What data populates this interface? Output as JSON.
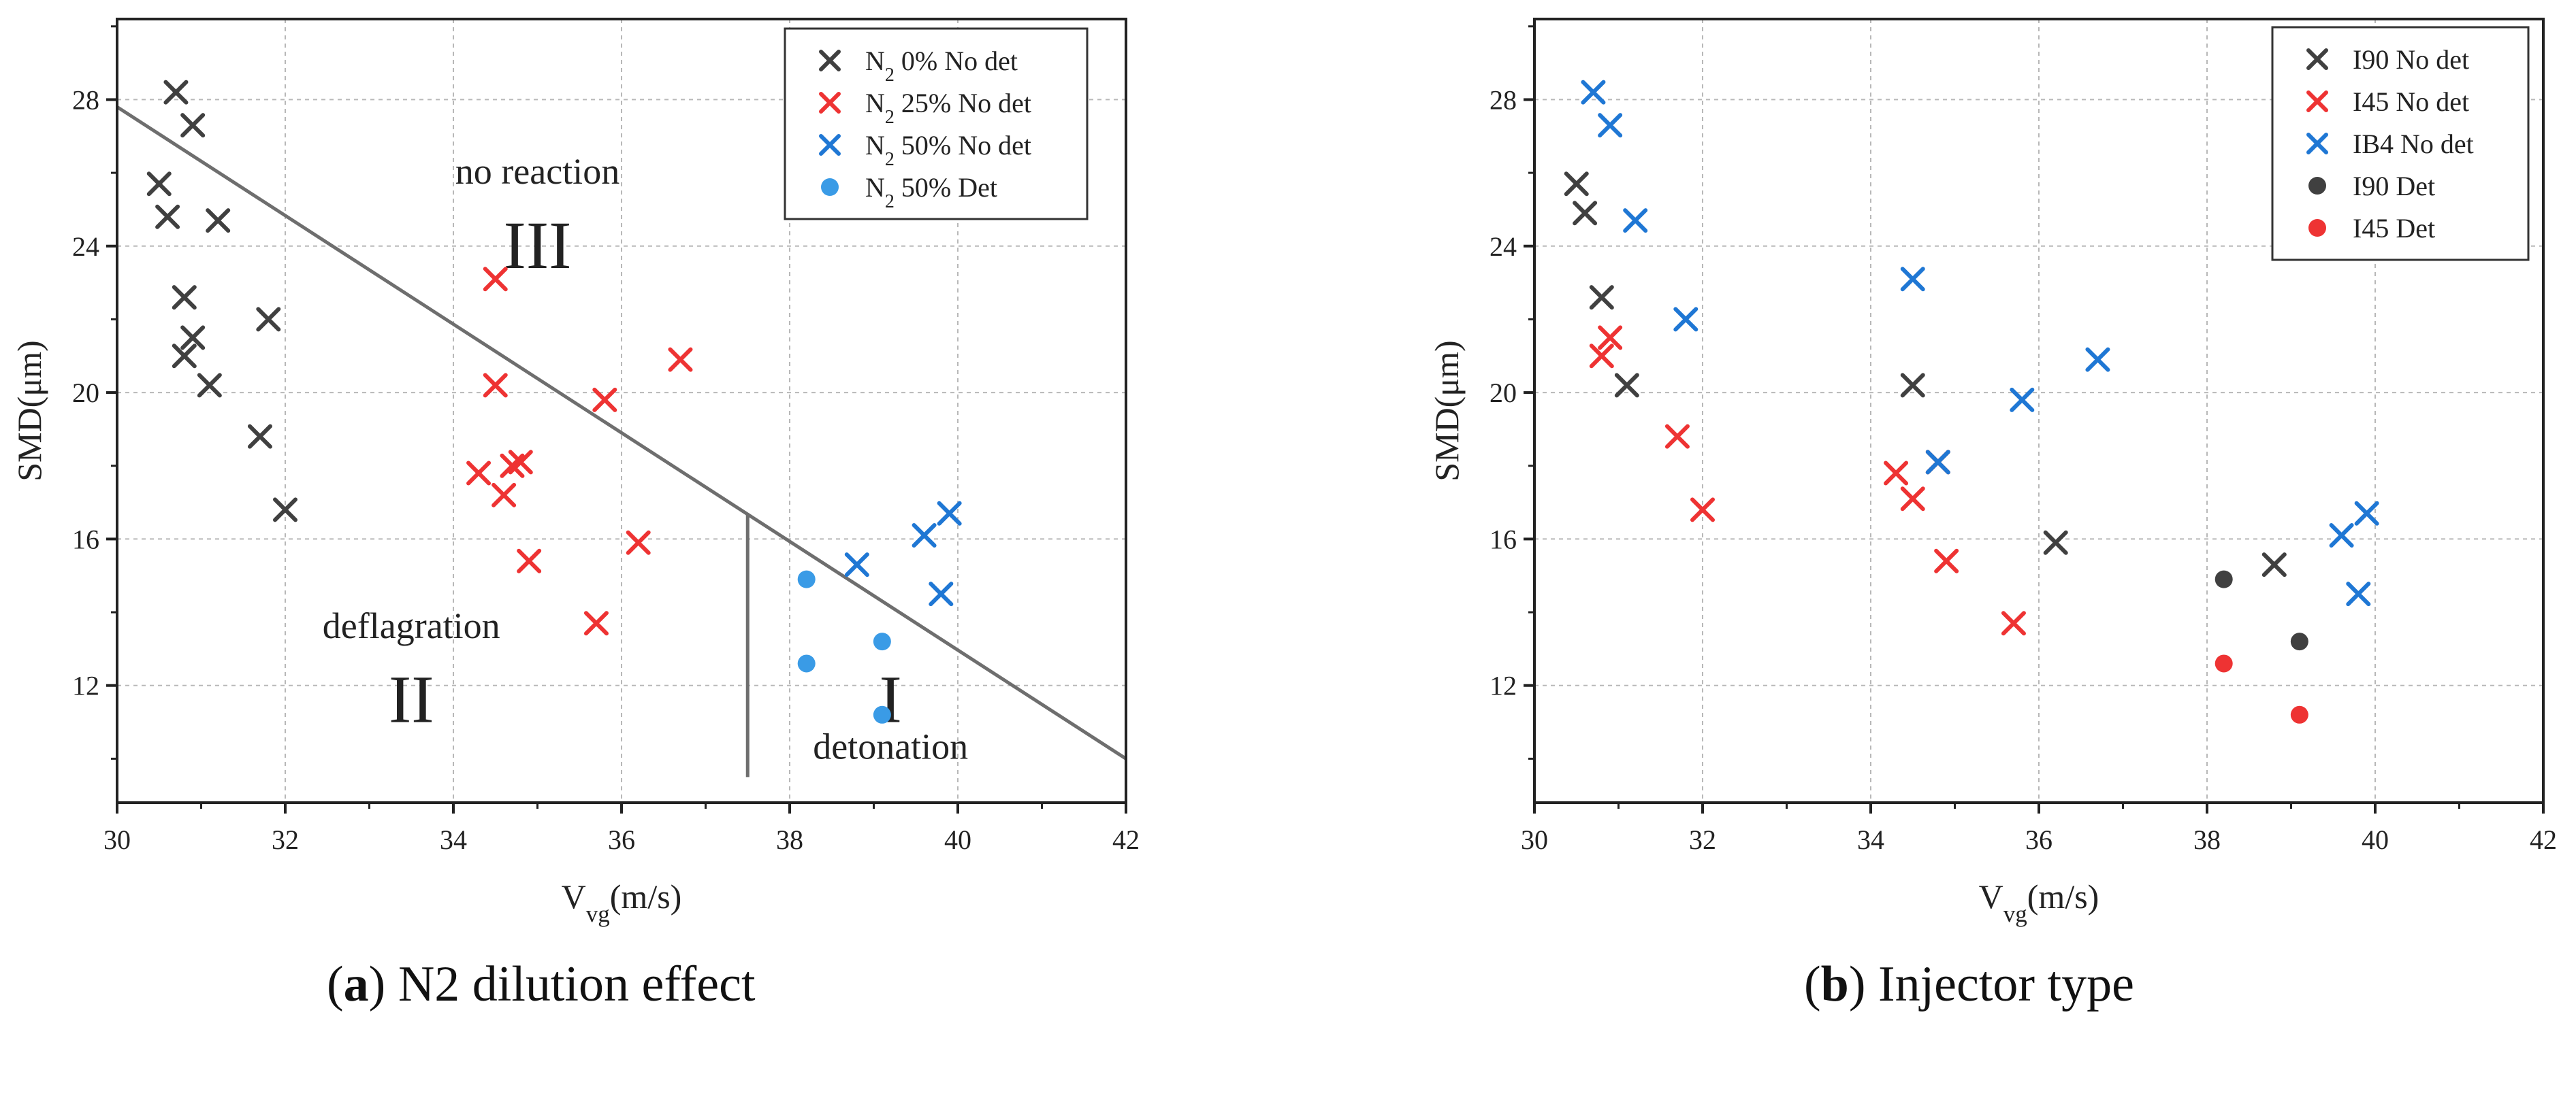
{
  "charts": [
    {
      "id": "a",
      "caption": {
        "letter": "a",
        "text": "N2 dilution effect",
        "prefix": "(",
        "suffix": ")"
      },
      "ylabel": "SMD(μm)",
      "xlabel_main": "V",
      "xlabel_sub": "vg",
      "xlabel_units": "(m/s)",
      "xlim": [
        30,
        42
      ],
      "ylim": [
        8.8,
        30.2
      ],
      "xticks": [
        30,
        32,
        34,
        36,
        38,
        40,
        42
      ],
      "yticks": [
        12,
        16,
        20,
        24,
        28
      ],
      "legend": {
        "position": "top-right",
        "entries": [
          {
            "prefix": "N",
            "sub": "2",
            "rest": " 0% No det",
            "marker": "x",
            "color": "#404040"
          },
          {
            "prefix": "N",
            "sub": "2",
            "rest": " 25% No det",
            "marker": "x",
            "color": "#ee3333"
          },
          {
            "prefix": "N",
            "sub": "2",
            "rest": " 50% No det",
            "marker": "x",
            "color": "#1f77d4"
          },
          {
            "prefix": "N",
            "sub": "2",
            "rest": " 50% Det",
            "marker": "dot",
            "color": "#3a9be6"
          }
        ]
      },
      "series": [
        {
          "name": "N2 0% No det",
          "marker": "x",
          "color": "#404040",
          "points": [
            [
              30.7,
              28.2
            ],
            [
              30.9,
              27.3
            ],
            [
              30.5,
              25.7
            ],
            [
              30.6,
              24.8
            ],
            [
              31.2,
              24.7
            ],
            [
              30.8,
              22.6
            ],
            [
              31.8,
              22.0
            ],
            [
              30.9,
              21.5
            ],
            [
              30.8,
              21.0
            ],
            [
              31.1,
              20.2
            ],
            [
              31.7,
              18.8
            ],
            [
              32.0,
              16.8
            ]
          ]
        },
        {
          "name": "N2 25% No det",
          "marker": "x",
          "color": "#ee3333",
          "points": [
            [
              34.5,
              23.1
            ],
            [
              36.7,
              20.9
            ],
            [
              34.5,
              20.2
            ],
            [
              35.8,
              19.8
            ],
            [
              34.8,
              18.1
            ],
            [
              34.7,
              18.0
            ],
            [
              34.3,
              17.8
            ],
            [
              34.6,
              17.2
            ],
            [
              36.2,
              15.9
            ],
            [
              34.9,
              15.4
            ],
            [
              35.7,
              13.7
            ]
          ]
        },
        {
          "name": "N2 50% No det",
          "marker": "x",
          "color": "#1f77d4",
          "points": [
            [
              39.9,
              16.7
            ],
            [
              39.6,
              16.1
            ],
            [
              38.8,
              15.3
            ],
            [
              39.8,
              14.5
            ]
          ]
        },
        {
          "name": "N2 50% Det",
          "marker": "dot",
          "color": "#3a9be6",
          "points": [
            [
              38.2,
              14.9
            ],
            [
              39.1,
              13.2
            ],
            [
              38.2,
              12.6
            ],
            [
              39.1,
              11.2
            ]
          ]
        }
      ],
      "boundary_lines": [
        {
          "from": [
            30.0,
            27.8
          ],
          "to": [
            42.0,
            10.0
          ]
        },
        {
          "from": [
            37.5,
            16.7
          ],
          "to": [
            37.5,
            9.5
          ]
        }
      ],
      "annotations": [
        {
          "text": "no reaction",
          "x": 35.0,
          "y": 25.7,
          "size": "small"
        },
        {
          "text": "III",
          "x": 35.0,
          "y": 23.4,
          "size": "large"
        },
        {
          "text": "deflagration",
          "x": 33.5,
          "y": 13.3,
          "size": "small"
        },
        {
          "text": "II",
          "x": 33.5,
          "y": 11.0,
          "size": "large"
        },
        {
          "text": "I",
          "x": 39.2,
          "y": 11.0,
          "size": "large"
        },
        {
          "text": "detonation",
          "x": 39.2,
          "y": 10.0,
          "size": "small"
        }
      ]
    },
    {
      "id": "b",
      "caption": {
        "letter": "b",
        "text": "Injector type",
        "prefix": "(",
        "suffix": ")"
      },
      "ylabel": "SMD(μm)",
      "xlabel_main": "V",
      "xlabel_sub": "vg",
      "xlabel_units": "(m/s)",
      "xlim": [
        30,
        42
      ],
      "ylim": [
        8.8,
        30.2
      ],
      "xticks": [
        30,
        32,
        34,
        36,
        38,
        40,
        42
      ],
      "yticks": [
        12,
        16,
        20,
        24,
        28
      ],
      "legend": {
        "position": "top-right",
        "entries": [
          {
            "prefix": "I90 No det",
            "sub": "",
            "rest": "",
            "marker": "x",
            "color": "#404040"
          },
          {
            "prefix": "I45 No det",
            "sub": "",
            "rest": "",
            "marker": "x",
            "color": "#ee3333"
          },
          {
            "prefix": "IB4 No det",
            "sub": "",
            "rest": "",
            "marker": "x",
            "color": "#1f77d4"
          },
          {
            "prefix": "I90 Det",
            "sub": "",
            "rest": "",
            "marker": "dot",
            "color": "#404040"
          },
          {
            "prefix": "I45 Det",
            "sub": "",
            "rest": "",
            "marker": "dot",
            "color": "#ee3333"
          }
        ]
      },
      "series": [
        {
          "name": "I90 No det",
          "marker": "x",
          "color": "#404040",
          "points": [
            [
              30.5,
              25.7
            ],
            [
              30.6,
              24.9
            ],
            [
              30.8,
              22.6
            ],
            [
              31.1,
              20.2
            ],
            [
              34.5,
              20.2
            ],
            [
              34.8,
              18.1
            ],
            [
              36.2,
              15.9
            ],
            [
              38.8,
              15.3
            ]
          ]
        },
        {
          "name": "I45 No det",
          "marker": "x",
          "color": "#ee3333",
          "points": [
            [
              30.9,
              21.5
            ],
            [
              30.8,
              21.0
            ],
            [
              31.7,
              18.8
            ],
            [
              32.0,
              16.8
            ],
            [
              34.3,
              17.8
            ],
            [
              34.8,
              18.1
            ],
            [
              34.5,
              17.1
            ],
            [
              34.9,
              15.4
            ],
            [
              35.7,
              13.7
            ]
          ]
        },
        {
          "name": "IB4 No det",
          "marker": "x",
          "color": "#1f77d4",
          "points": [
            [
              30.7,
              28.2
            ],
            [
              30.9,
              27.3
            ],
            [
              31.2,
              24.7
            ],
            [
              34.5,
              23.1
            ],
            [
              31.8,
              22.0
            ],
            [
              36.7,
              20.9
            ],
            [
              35.8,
              19.8
            ],
            [
              34.8,
              18.1
            ],
            [
              39.9,
              16.7
            ],
            [
              39.6,
              16.1
            ],
            [
              39.8,
              14.5
            ]
          ]
        },
        {
          "name": "I90 Det",
          "marker": "dot",
          "color": "#404040",
          "points": [
            [
              38.2,
              14.9
            ],
            [
              39.1,
              13.2
            ]
          ]
        },
        {
          "name": "I45 Det",
          "marker": "dot",
          "color": "#ee3333",
          "points": [
            [
              38.2,
              12.6
            ],
            [
              39.1,
              11.2
            ]
          ]
        }
      ],
      "boundary_lines": [],
      "annotations": []
    }
  ]
}
